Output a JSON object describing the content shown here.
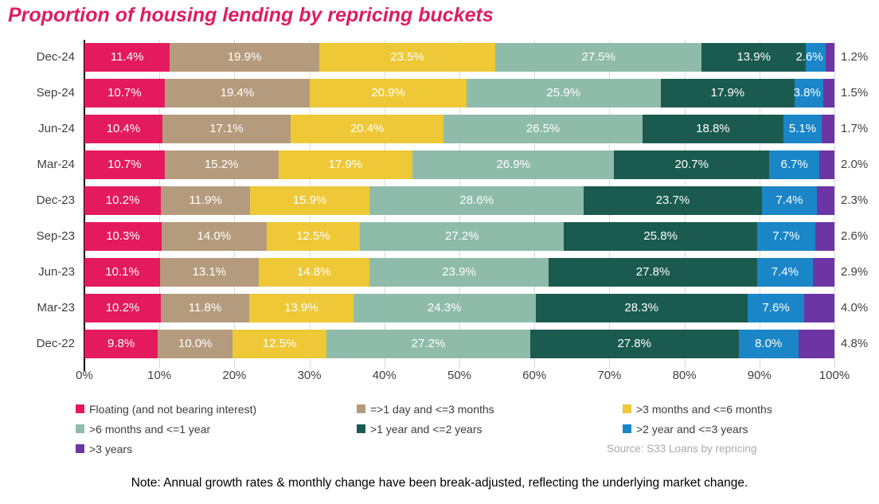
{
  "chart_data": {
    "type": "bar",
    "variant": "horizontal-stacked-100pct",
    "title": "Proportion of housing lending by repricing buckets",
    "title_color": "#DC1E63",
    "categories": [
      "Dec-24",
      "Sep-24",
      "Jun-24",
      "Mar-24",
      "Dec-23",
      "Sep-23",
      "Jun-23",
      "Mar-23",
      "Dec-22"
    ],
    "series": [
      {
        "name": "Floating (and not bearing interest)",
        "color": "#E41A5F",
        "values": [
          11.4,
          10.7,
          10.4,
          10.7,
          10.2,
          10.3,
          10.1,
          10.2,
          9.8
        ]
      },
      {
        "name": "=>1 day and <=3 months",
        "color": "#B59B7D",
        "values": [
          19.9,
          19.4,
          17.1,
          15.2,
          11.9,
          14.0,
          13.1,
          11.8,
          10.0
        ]
      },
      {
        "name": ">3 months and <=6 months",
        "color": "#EEC836",
        "values": [
          23.5,
          20.9,
          20.4,
          17.9,
          15.9,
          12.5,
          14.8,
          13.9,
          12.5
        ]
      },
      {
        "name": ">6 months and <=1 year",
        "color": "#8FBBAB",
        "values": [
          27.5,
          25.9,
          26.5,
          26.9,
          28.6,
          27.2,
          23.9,
          24.3,
          27.2
        ]
      },
      {
        "name": ">1 year and <=2 years",
        "color": "#1B5B4F",
        "values": [
          13.9,
          17.9,
          18.8,
          20.7,
          23.7,
          25.8,
          27.8,
          28.3,
          27.8
        ]
      },
      {
        "name": ">2 year and <=3 years",
        "color": "#1A86C8",
        "values": [
          2.6,
          3.8,
          5.1,
          6.7,
          7.4,
          7.7,
          7.4,
          7.6,
          8.0
        ]
      },
      {
        "name": ">3 years",
        "color": "#6C35A3",
        "values": [
          1.2,
          1.5,
          1.7,
          2.0,
          2.3,
          2.6,
          2.9,
          4.0,
          4.8
        ]
      }
    ],
    "x_ticks": [
      "0%",
      "10%",
      "20%",
      "30%",
      "40%",
      "50%",
      "60%",
      "70%",
      "80%",
      "90%",
      "100%"
    ],
    "xlim": [
      0,
      100
    ],
    "value_label_suffix": "%",
    "value_label_decimals": 1,
    "gridlines": "vertical-light-gray",
    "legend_position": "bottom-left-3-columns",
    "last_series_label_position": "outside-right",
    "source": "Source: S33 Loans by repricing"
  },
  "note": {
    "text": "Note: Annual growth rates & monthly change have been break-adjusted, reflecting the underlying market change."
  }
}
